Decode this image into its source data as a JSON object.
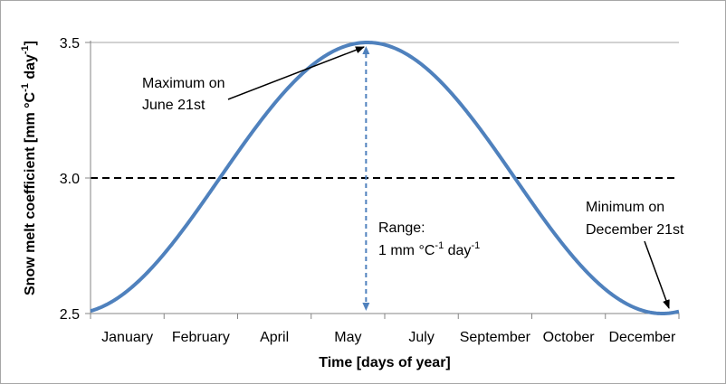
{
  "chart_data": {
    "type": "line",
    "xlabel": "Time [days of year]",
    "ylabel_main": "Snow melt coefficient [mm °C",
    "ylabel_sup1": "-1",
    "ylabel_mid": " day",
    "ylabel_sup2": "-1",
    "ylabel_end": "]",
    "x_tick_labels": [
      "January",
      "February",
      "April",
      "May",
      "July",
      "September",
      "October",
      "December"
    ],
    "y_ticks": [
      2.5,
      3.0,
      3.5
    ],
    "y_tick_labels": [
      "2.5",
      "3.0",
      "3.5"
    ],
    "ylim": [
      2.5,
      3.5
    ],
    "xlim": [
      1,
      365
    ],
    "grid": "horizontal at 3.5 only",
    "series": [
      {
        "color": "#4f81bd",
        "formula": "3.0 + 0.5 * sin(2*pi*(day-81)/365)",
        "x": [
          1,
          15,
          30,
          45,
          60,
          81,
          100,
          120,
          140,
          160,
          172,
          185,
          200,
          220,
          240,
          264,
          280,
          300,
          320,
          340,
          355,
          365
        ],
        "y": [
          2.5,
          2.52,
          2.6,
          2.72,
          2.86,
          3.0,
          3.16,
          3.32,
          3.44,
          3.5,
          3.5,
          3.49,
          3.44,
          3.33,
          3.18,
          2.99,
          2.85,
          2.69,
          2.57,
          2.51,
          2.5,
          2.51
        ]
      }
    ],
    "mean_line": {
      "value": 3.0,
      "style": "dashed",
      "color": "#000000"
    },
    "range_arrow": {
      "day": 172,
      "from": 2.5,
      "to": 3.5,
      "style": "dashed",
      "color": "#4f81bd"
    },
    "annotations": {
      "max_line1": "Maximum on",
      "max_line2": "June 21st",
      "min_line1": "Minimum on",
      "min_line2": "December 21st",
      "range_line1": "Range:",
      "range_line2_a": "1 mm °C",
      "range_line2_sup1": "-1",
      "range_line2_b": " day",
      "range_line2_sup2": "-1"
    }
  }
}
